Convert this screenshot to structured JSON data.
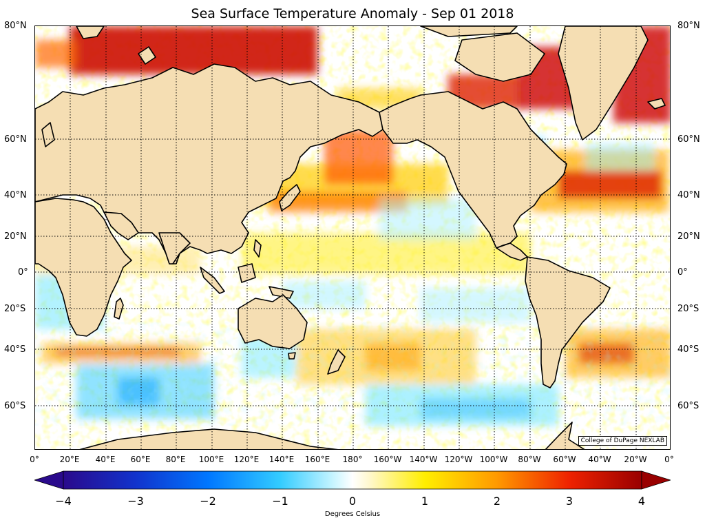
{
  "title": "Sea Surface Temperature Anomaly - Sep 01 2018",
  "credit": "College of DuPage NEXLAB",
  "lat_labels": [
    "80°N",
    "60°N",
    "40°N",
    "20°N",
    "0°",
    "20°S",
    "40°S",
    "60°S"
  ],
  "lon_labels": [
    "0°",
    "20°E",
    "40°E",
    "60°E",
    "80°E",
    "100°E",
    "120°E",
    "140°E",
    "160°E",
    "180°",
    "160°W",
    "140°W",
    "120°W",
    "100°W",
    "80°W",
    "60°W",
    "40°W",
    "20°W",
    "0°"
  ],
  "colorbar": {
    "label": "Degrees Celsius",
    "ticks": [
      "−4",
      "−3",
      "−2",
      "−1",
      "0",
      "1",
      "2",
      "3",
      "4"
    ],
    "min": -4,
    "max": 4,
    "extend": "both"
  },
  "colors": {
    "land": "#f5deb3",
    "coastline": "#000000",
    "ocean_neutral": "#ffffff"
  }
}
